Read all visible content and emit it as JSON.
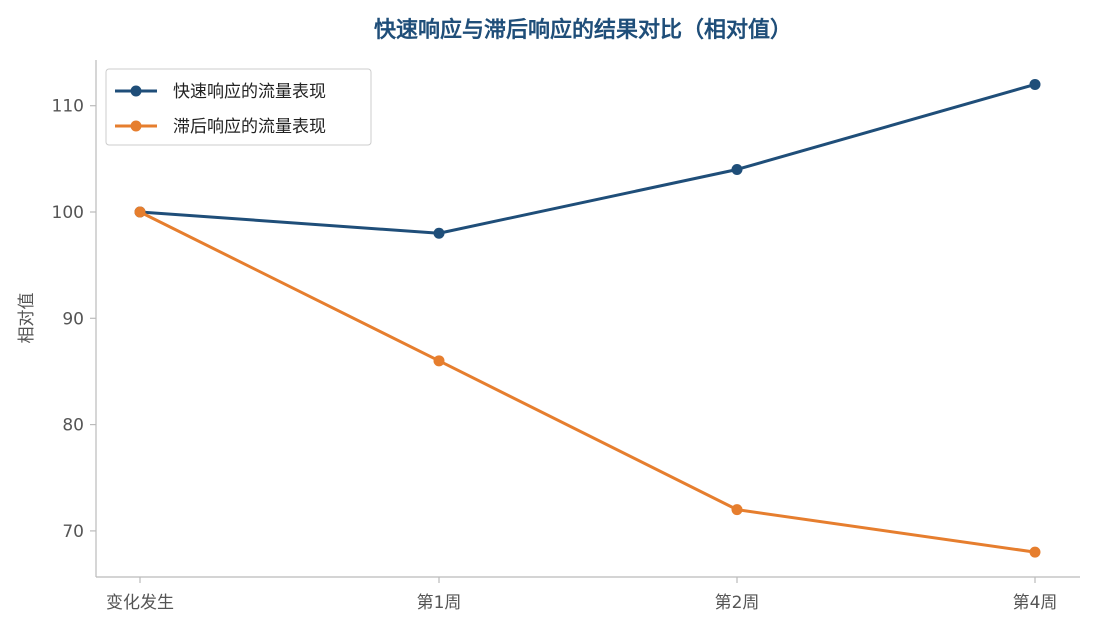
{
  "chart_data": {
    "type": "line",
    "title": "快速响应与滞后响应的结果对比（相对值）",
    "xlabel": "",
    "ylabel": "相对值",
    "categories": [
      "变化发生",
      "第1周",
      "第2周",
      "第4周"
    ],
    "series": [
      {
        "name": "快速响应的流量表现",
        "values": [
          100,
          98,
          104,
          112
        ],
        "color": "#1f4e79"
      },
      {
        "name": "滞后响应的流量表现",
        "values": [
          100,
          86,
          72,
          68
        ],
        "color": "#e67e2e"
      }
    ],
    "ylim": [
      66,
      114
    ],
    "yticks": [
      70,
      80,
      90,
      100,
      110
    ],
    "grid": false,
    "legend": "top-left",
    "title_color": "#1f4e79"
  }
}
